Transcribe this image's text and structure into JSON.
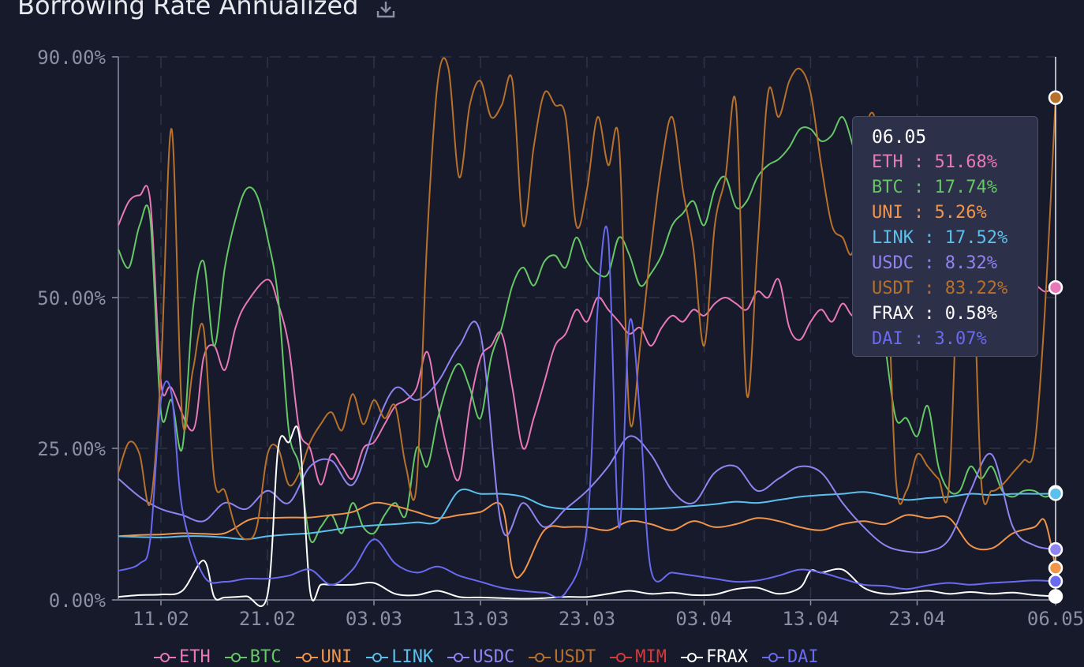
{
  "title": "Borrowing Rate Annualized",
  "download_icon": "download-icon",
  "colors": {
    "background": "#161a2b",
    "grid": "#2f3448",
    "axis": "#8a8fa3",
    "tooltip_bg": "#2c3048"
  },
  "tooltip": {
    "date": "06.05",
    "rows": [
      {
        "label": "ETH : 51.68%",
        "color": "#e878b8"
      },
      {
        "label": "BTC : 17.74%",
        "color": "#66c766"
      },
      {
        "label": "UNI : 5.26%",
        "color": "#f0954a"
      },
      {
        "label": "LINK : 17.52%",
        "color": "#5bc0eb"
      },
      {
        "label": "USDC : 8.32%",
        "color": "#8f84f0"
      },
      {
        "label": "USDT : 83.22%",
        "color": "#b8712a"
      },
      {
        "label": "FRAX : 0.58%",
        "color": "#ffffff"
      },
      {
        "label": "DAI : 3.07%",
        "color": "#6a6af0"
      }
    ]
  },
  "legend": [
    {
      "label": "ETH",
      "color": "#e878b8"
    },
    {
      "label": "BTC",
      "color": "#66c766"
    },
    {
      "label": "UNI",
      "color": "#f0954a"
    },
    {
      "label": "LINK",
      "color": "#5bc0eb"
    },
    {
      "label": "USDC",
      "color": "#8f84f0"
    },
    {
      "label": "USDT",
      "color": "#b8712a"
    },
    {
      "label": "MIM",
      "color": "#d33a3a"
    },
    {
      "label": "FRAX",
      "color": "#ffffff"
    },
    {
      "label": "DAI",
      "color": "#6a6af0"
    }
  ],
  "chart_data": {
    "type": "line",
    "title": "Borrowing Rate Annualized",
    "y_tick_labels": [
      "0.00%",
      "25.00%",
      "50.00%",
      "90.00%"
    ],
    "y_tick_values": [
      0,
      25,
      50,
      90
    ],
    "x_tick_labels": [
      "11.02",
      "21.02",
      "03.03",
      "13.03",
      "23.03",
      "03.04",
      "13.04",
      "23.04",
      "06.05"
    ],
    "x_tick_days": [
      4,
      14,
      24,
      34,
      44,
      55,
      65,
      75,
      88
    ],
    "x_range_days": [
      0,
      88
    ],
    "ylim": [
      0,
      90
    ],
    "grid": true,
    "legend_position": "bottom",
    "series": [
      {
        "name": "ETH",
        "color": "#e878b8",
        "x": [
          0,
          1,
          2,
          3,
          4,
          5,
          7,
          8,
          9,
          10,
          11,
          12,
          14,
          15,
          16,
          17,
          18,
          19,
          20,
          21,
          22,
          23,
          24,
          25,
          26,
          27,
          28,
          29,
          30,
          31,
          32,
          33,
          34,
          35,
          36,
          37,
          38,
          39,
          40,
          41,
          42,
          43,
          44,
          45,
          46,
          47,
          48,
          49,
          50,
          51,
          52,
          53,
          54,
          55,
          56,
          57,
          58,
          59,
          60,
          61,
          62,
          63,
          64,
          65,
          66,
          67,
          68,
          69,
          70,
          71,
          72,
          73,
          74,
          75,
          76,
          77,
          78,
          79,
          80,
          81,
          82,
          83,
          84,
          85,
          86,
          87,
          88
        ],
        "values": [
          62,
          66,
          67,
          66,
          36,
          35,
          28,
          40,
          42,
          38,
          45,
          49,
          53,
          49,
          42,
          28,
          25,
          19,
          24,
          22,
          20,
          25,
          26,
          29,
          32,
          33,
          35,
          41,
          32,
          24,
          20,
          32,
          40,
          42,
          44,
          35,
          25,
          30,
          36,
          42,
          44,
          48,
          46,
          50,
          48,
          46,
          44,
          45,
          42,
          45,
          47,
          46,
          48,
          47,
          49,
          50,
          49,
          48,
          51,
          50,
          53,
          45,
          43,
          46,
          48,
          46,
          49,
          47,
          50,
          49,
          52,
          51,
          49,
          50,
          52,
          51,
          50,
          49,
          52,
          51,
          50,
          52,
          51,
          50,
          52,
          51,
          51.68
        ]
      },
      {
        "name": "BTC",
        "color": "#66c766",
        "x": [
          0,
          1,
          2,
          3,
          4,
          5,
          6,
          7,
          8,
          9,
          10,
          11,
          12,
          13,
          14,
          15,
          16,
          17,
          18,
          19,
          20,
          21,
          22,
          23,
          24,
          25,
          26,
          27,
          28,
          29,
          30,
          31,
          32,
          33,
          34,
          35,
          36,
          37,
          38,
          39,
          40,
          41,
          42,
          43,
          44,
          45,
          46,
          47,
          48,
          49,
          50,
          51,
          52,
          53,
          54,
          55,
          56,
          57,
          58,
          59,
          60,
          61,
          62,
          63,
          64,
          65,
          66,
          67,
          68,
          69,
          70,
          71,
          72,
          73,
          74,
          75,
          76,
          77,
          78,
          79,
          80,
          81,
          82,
          83,
          84,
          85,
          86,
          87,
          88
        ],
        "values": [
          58,
          55,
          62,
          63,
          31,
          33,
          25,
          48,
          56,
          42,
          55,
          63,
          68,
          67,
          60,
          50,
          28,
          22,
          10,
          12,
          14,
          11,
          16,
          12,
          11,
          14,
          16,
          14,
          25,
          22,
          30,
          36,
          39,
          35,
          30,
          40,
          45,
          52,
          55,
          52,
          56,
          57,
          55,
          60,
          56,
          54,
          54,
          60,
          57,
          52,
          54,
          57,
          62,
          64,
          66,
          62,
          68,
          70,
          65,
          66,
          70,
          72,
          73,
          75,
          78,
          78,
          76,
          77,
          80,
          75,
          68,
          55,
          42,
          30,
          30,
          27,
          32,
          22,
          18,
          18,
          22,
          20,
          22,
          18,
          17,
          18,
          18,
          17,
          17.74
        ]
      },
      {
        "name": "UNI",
        "color": "#f0954a",
        "x": [
          0,
          2,
          4,
          6,
          8,
          10,
          12,
          13,
          14,
          16,
          18,
          20,
          22,
          24,
          26,
          28,
          30,
          32,
          34,
          36,
          37,
          38,
          40,
          42,
          44,
          46,
          48,
          50,
          52,
          54,
          56,
          58,
          60,
          62,
          64,
          66,
          68,
          70,
          72,
          74,
          76,
          78,
          80,
          82,
          84,
          86,
          87,
          88
        ],
        "values": [
          10.5,
          10.7,
          10.8,
          11,
          10.9,
          11,
          13,
          13.5,
          13.5,
          13.6,
          13.6,
          14,
          14.5,
          16,
          15.5,
          14.5,
          13.5,
          14,
          14.5,
          15.5,
          5,
          4.5,
          11.5,
          12,
          12,
          11.5,
          13,
          12.5,
          11.5,
          13,
          12,
          12.5,
          13.5,
          13,
          12,
          11.5,
          12.5,
          13,
          12.5,
          14,
          13.5,
          13.5,
          9,
          8.5,
          11,
          12,
          13,
          5.26
        ]
      },
      {
        "name": "LINK",
        "color": "#5bc0eb",
        "x": [
          0,
          4,
          6,
          8,
          10,
          12,
          14,
          16,
          18,
          20,
          22,
          24,
          26,
          28,
          30,
          32,
          34,
          36,
          38,
          40,
          42,
          44,
          46,
          48,
          50,
          52,
          54,
          56,
          58,
          60,
          62,
          64,
          66,
          68,
          70,
          72,
          74,
          76,
          78,
          80,
          82,
          84,
          86,
          88
        ],
        "values": [
          10.5,
          10.3,
          10.5,
          10.5,
          10.3,
          10,
          10.5,
          10.8,
          11,
          11.5,
          12,
          12.3,
          12.5,
          12.8,
          13,
          18,
          17.5,
          17.5,
          17,
          15.5,
          15,
          15,
          15,
          15,
          15,
          15.2,
          15.5,
          15.8,
          16.2,
          16,
          16.5,
          17,
          17.3,
          17.5,
          17.8,
          17.2,
          16.5,
          16.8,
          17,
          17.5,
          17.3,
          17.5,
          17.5,
          17.52
        ]
      },
      {
        "name": "USDC",
        "color": "#8f84f0",
        "x": [
          0,
          2,
          4,
          6,
          8,
          10,
          12,
          14,
          16,
          18,
          20,
          22,
          24,
          26,
          28,
          30,
          32,
          34,
          36,
          38,
          40,
          42,
          44,
          46,
          48,
          50,
          52,
          54,
          56,
          58,
          60,
          62,
          64,
          66,
          68,
          70,
          72,
          74,
          76,
          78,
          80,
          82,
          84,
          86,
          88
        ],
        "values": [
          20,
          17,
          15,
          14,
          13,
          16,
          15,
          18,
          16,
          22,
          23,
          19,
          28,
          35,
          33,
          36,
          42,
          44,
          12,
          16,
          12,
          15,
          18,
          22,
          27,
          24,
          18,
          16,
          21,
          22,
          18,
          20,
          22,
          21,
          16,
          12,
          9,
          8,
          8,
          10,
          18,
          24,
          12,
          9,
          8.32
        ]
      },
      {
        "name": "USDT",
        "color": "#b8712a",
        "x": [
          0,
          1,
          2,
          3,
          4,
          5,
          6,
          7,
          8,
          9,
          10,
          11,
          12,
          13,
          14,
          15,
          16,
          17,
          18,
          19,
          20,
          21,
          22,
          23,
          24,
          25,
          26,
          27,
          28,
          29,
          30,
          31,
          32,
          33,
          34,
          35,
          36,
          37,
          38,
          39,
          40,
          41,
          42,
          43,
          44,
          45,
          46,
          47,
          48,
          49,
          50,
          51,
          52,
          53,
          54,
          55,
          56,
          57,
          58,
          59,
          60,
          61,
          62,
          63,
          64,
          65,
          66,
          67,
          68,
          69,
          70,
          71,
          72,
          73,
          74,
          75,
          76,
          77,
          78,
          79,
          80,
          81,
          82,
          83,
          84,
          85,
          86,
          87,
          88
        ],
        "values": [
          21,
          26,
          24,
          16,
          38,
          78,
          30,
          38,
          45,
          20,
          18,
          12,
          10,
          12,
          24,
          25,
          19,
          21,
          26,
          29,
          31,
          28,
          34,
          29,
          33,
          30,
          32,
          22,
          19,
          60,
          86,
          88,
          70,
          82,
          86,
          80,
          82,
          86,
          62,
          75,
          84,
          82,
          80,
          62,
          68,
          80,
          72,
          76,
          30,
          42,
          58,
          72,
          80,
          68,
          58,
          42,
          62,
          70,
          82,
          34,
          58,
          84,
          80,
          86,
          88,
          84,
          72,
          62,
          60,
          58,
          76,
          80,
          64,
          20,
          18,
          24,
          22,
          20,
          19,
          62,
          68,
          20,
          18,
          19,
          21,
          23,
          25,
          48,
          83.22
        ]
      },
      {
        "name": "FRAX",
        "color": "#ffffff",
        "x": [
          0,
          2,
          4,
          6,
          8,
          9,
          10,
          12,
          14,
          15,
          16,
          17,
          18,
          19,
          20,
          22,
          24,
          26,
          28,
          30,
          32,
          34,
          36,
          38,
          40,
          42,
          44,
          46,
          48,
          50,
          52,
          54,
          56,
          58,
          60,
          62,
          64,
          65,
          66,
          68,
          70,
          72,
          74,
          76,
          78,
          80,
          82,
          84,
          86,
          88
        ],
        "values": [
          0.5,
          0.8,
          0.9,
          1.5,
          6.5,
          0.5,
          0.4,
          0.6,
          0.8,
          25,
          26,
          27,
          1.5,
          2.5,
          2.5,
          2.5,
          2.8,
          1,
          0.8,
          1.5,
          0.5,
          0.4,
          0.3,
          0.2,
          0.3,
          0.5,
          0.5,
          1,
          1.5,
          1,
          1.2,
          0.8,
          0.9,
          1.8,
          2,
          1,
          2,
          4.8,
          4.5,
          5,
          2,
          1,
          1.2,
          1.5,
          1,
          1.3,
          1,
          1.2,
          0.8,
          0.58
        ]
      },
      {
        "name": "MIM",
        "color": "#d33a3a",
        "x": [],
        "values": []
      },
      {
        "name": "DAI",
        "color": "#6a6af0",
        "x": [
          0,
          2,
          3,
          4,
          5,
          6,
          8,
          10,
          12,
          14,
          16,
          18,
          20,
          22,
          24,
          26,
          28,
          30,
          32,
          34,
          36,
          38,
          40,
          42,
          44,
          45,
          46,
          47,
          48,
          49,
          50,
          52,
          54,
          56,
          58,
          60,
          62,
          64,
          66,
          68,
          70,
          72,
          74,
          76,
          78,
          80,
          82,
          84,
          86,
          88
        ],
        "values": [
          4.8,
          6,
          10,
          33,
          34,
          15,
          4,
          3,
          3.5,
          3.5,
          4,
          5,
          2.5,
          5,
          10,
          6,
          4.5,
          5.5,
          4,
          3,
          2,
          1.5,
          1.2,
          1.2,
          12,
          48,
          60,
          12,
          46,
          30,
          5,
          4.5,
          4,
          3.5,
          3,
          3.2,
          4,
          5,
          4.5,
          3.5,
          2.5,
          2.3,
          1.8,
          2.4,
          2.8,
          2.5,
          2.8,
          3,
          3.2,
          3.07
        ]
      }
    ],
    "crosshair_day": 88
  }
}
